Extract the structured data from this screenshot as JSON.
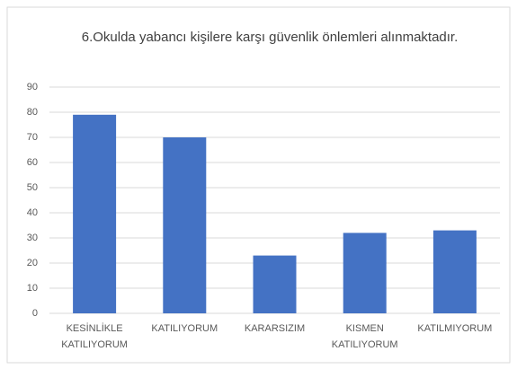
{
  "chart_data": {
    "type": "bar",
    "title": "6.Okulda yabancı kişilere karşı güvenlik önlemleri alınmaktadır.",
    "categories": [
      "KESİNLİKLE KATILIYORUM",
      "KATILIYORUM",
      "KARARSIZIM",
      "KISMEN KATILIYORUM",
      "KATILMIYORUM"
    ],
    "values": [
      79,
      70,
      23,
      32,
      33
    ],
    "color": "#4472c4",
    "ylim": [
      0,
      90
    ],
    "yticks": [
      0,
      10,
      20,
      30,
      40,
      50,
      60,
      70,
      80,
      90
    ],
    "grid": true
  }
}
